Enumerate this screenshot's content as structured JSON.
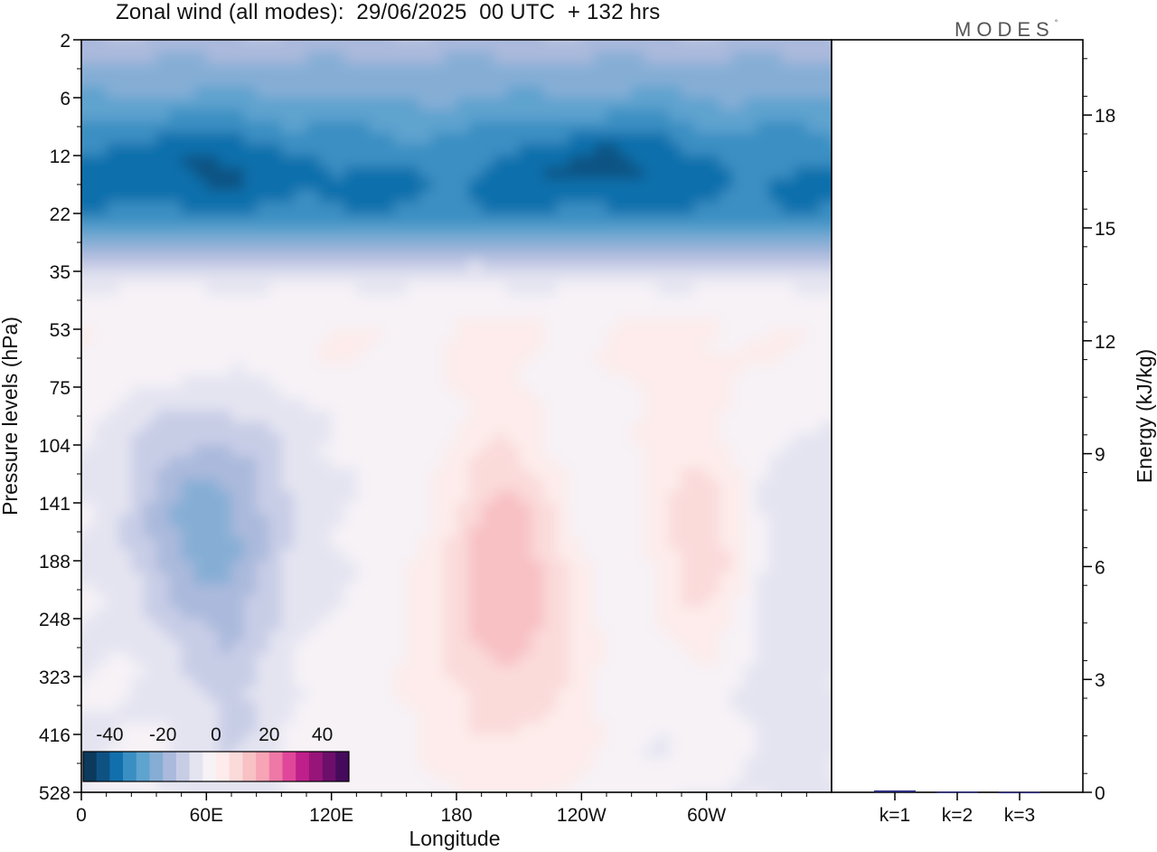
{
  "title": "Zonal wind (all modes):  29/06/2025  00 UTC  + 132 hrs",
  "logo": {
    "text": "MODES",
    "mark": "°"
  },
  "chart_data": [
    {
      "type": "heatmap",
      "title": "Zonal wind (all modes):  29/06/2025  00 UTC  + 132 hrs",
      "xlabel": "Longitude",
      "ylabel": "Pressure levels (hPa)",
      "x_ticks": [
        "0",
        "60E",
        "120E",
        "180",
        "120W",
        "60W"
      ],
      "y_ticks": [
        "2",
        "6",
        "12",
        "22",
        "35",
        "53",
        "75",
        "104",
        "141",
        "188",
        "248",
        "323",
        "416",
        "528"
      ],
      "colorbar": {
        "tick_labels": [
          "-40",
          "-20",
          "0",
          "20",
          "40"
        ],
        "min": -50,
        "max": 50,
        "step": 7,
        "colors": [
          "#0b3a5c",
          "#0e5283",
          "#1170ac",
          "#3a8fc2",
          "#5fa3cf",
          "#86aed5",
          "#aab9dc",
          "#c8cde6",
          "#e4e4f1",
          "#f6f2f6",
          "#fdeceb",
          "#fbdada",
          "#f8c1c4",
          "#f6a4b6",
          "#ef78a6",
          "#e0479a",
          "#bf1f8a",
          "#981479",
          "#6d0e6b",
          "#460a5c"
        ]
      },
      "field_description_levels": {
        "2": [
          -10,
          -12,
          -8,
          -12,
          -14,
          -10
        ],
        "12": [
          -25,
          -35,
          -28,
          -33,
          -35,
          -26
        ],
        "53": [
          -2,
          0,
          1,
          2,
          2,
          0
        ],
        "141": [
          -8,
          -22,
          -4,
          10,
          -4,
          10
        ],
        "416": [
          -6,
          -8,
          -3,
          3,
          -2,
          -3
        ]
      }
    },
    {
      "type": "bar",
      "ylabel": "Energy (kJ/kg)",
      "categories": [
        "k=1",
        "k=2",
        "k=3"
      ],
      "values": [
        0.05,
        0.02,
        0.01
      ],
      "ylim": [
        0,
        20
      ],
      "y_ticks": [
        "0",
        "3",
        "6",
        "9",
        "12",
        "15",
        "18"
      ],
      "bar_color": "#2a2a7a"
    }
  ]
}
